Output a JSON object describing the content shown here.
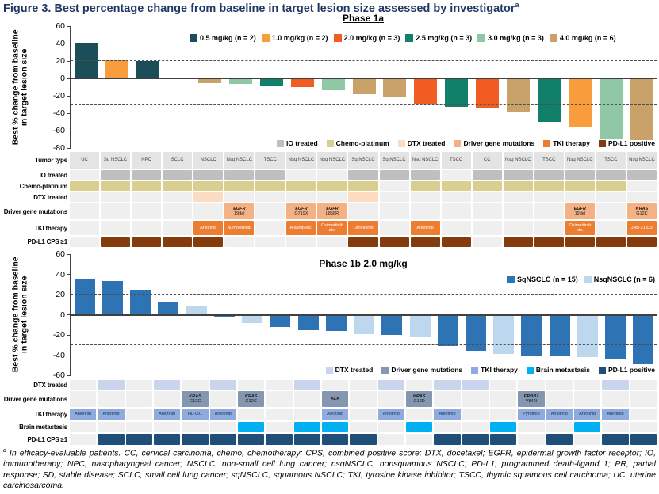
{
  "figure_title": "Figure 3. Best percentage change from baseline in target lesion size assessed by investigator",
  "figure_title_sup": "a",
  "footnote": {
    "marker": "a",
    "text": " In efficacy-evaluable patients. CC, cervical carcinoma; chemo, chemotherapy; CPS, combined positive score; DTX, docetaxel; EGFR, epidermal growth factor receptor; IO, immunotherapy; NPC, nasopharyngeal cancer; NSCLC, non-small cell lung cancer; nsqNSCLC, nonsquamous NSCLC; PD-L1, programmed death-ligand 1; PR, partial response; SD, stable disease; SCLC, small cell lung cancer; sqNSCLC, squamous NSCLC; TKI, tyrosine kinase inhibitor; TSCC, thymic squamous cell carcinoma; UC, uterine carcinosarcoma."
  },
  "colors": {
    "title_navy": "#1F3864",
    "axis_line": "#404040",
    "empty_cell": "#EFEFEF",
    "tumor_cell": "#E4E4E4",
    "io": "#BFBFBF",
    "chemo": "#D8CE8E",
    "dtx_1a": "#FBDCC3",
    "driver_1a": "#F4B183",
    "tki_1a": "#ED7D31",
    "pdl1_1a": "#843C0C",
    "sq_blue": "#2E74B5",
    "nsq_blue": "#BDD7EE",
    "dtx_1b": "#CAD4EC",
    "driver_1b": "#8496B0",
    "tki_1b": "#8FAADC",
    "brain": "#00B0F0",
    "pdl1_1b": "#1F4E79"
  },
  "chart_data": [
    {
      "type": "bar",
      "title": "Phase 1a",
      "ylabel": "Best % change from baseline in target lesion size",
      "ylim": [
        -80,
        60
      ],
      "yticks": [
        60,
        40,
        20,
        0,
        -20,
        -40,
        -60,
        -80
      ],
      "ref_lines": [
        20,
        -30
      ],
      "grid": false,
      "legend_position": "top-center",
      "legend": [
        {
          "key": "0.5",
          "label": "0.5 mg/kg (n = 2)",
          "color": "#1C4E5A"
        },
        {
          "key": "1.0",
          "label": "1.0 mg/kg (n = 2)",
          "color": "#F89C3C"
        },
        {
          "key": "2.0",
          "label": "2.0 mg/kg (n = 3)",
          "color": "#F15C22"
        },
        {
          "key": "2.5",
          "label": "2.5 mg/kg (n = 3)",
          "color": "#11806B"
        },
        {
          "key": "3.0",
          "label": "3.0 mg/kg (n = 3)",
          "color": "#90C7A5"
        },
        {
          "key": "4.0",
          "label": "4.0 mg/kg (n = 6)",
          "color": "#C8A269"
        }
      ],
      "bars": [
        {
          "value": 41,
          "key": "0.5"
        },
        {
          "value": 21,
          "key": "1.0"
        },
        {
          "value": 20,
          "key": "0.5"
        },
        {
          "value": 0,
          "key": "4.0"
        },
        {
          "value": -5,
          "key": "4.0"
        },
        {
          "value": -6,
          "key": "3.0"
        },
        {
          "value": -8,
          "key": "2.5"
        },
        {
          "value": -10,
          "key": "2.0"
        },
        {
          "value": -14,
          "key": "3.0"
        },
        {
          "value": -18,
          "key": "4.0"
        },
        {
          "value": -21,
          "key": "4.0"
        },
        {
          "value": -29,
          "key": "2.0"
        },
        {
          "value": -33,
          "key": "2.5"
        },
        {
          "value": -34,
          "key": "2.0"
        },
        {
          "value": -38,
          "key": "4.0"
        },
        {
          "value": -50,
          "key": "2.5"
        },
        {
          "value": -55,
          "key": "1.0"
        },
        {
          "value": -69,
          "key": "3.0"
        },
        {
          "value": -71,
          "key": "4.0"
        }
      ]
    },
    {
      "type": "bar",
      "title": "Phase 1b 2.0 mg/kg",
      "ylabel": "Best % change from baseline in target lesion size",
      "ylim": [
        -60,
        60
      ],
      "yticks": [
        60,
        40,
        20,
        0,
        -20,
        -40,
        -60
      ],
      "ref_lines": [
        20,
        -30
      ],
      "grid": false,
      "legend_position": "top-right",
      "legend": [
        {
          "key": "sq",
          "label": "SqNSCLC (n = 15)",
          "color": "#2E74B5"
        },
        {
          "key": "nsq",
          "label": "NsqNSCLC (n = 6)",
          "color": "#BDD7EE"
        }
      ],
      "bars": [
        {
          "value": 35,
          "key": "sq"
        },
        {
          "value": 33,
          "key": "sq"
        },
        {
          "value": 25,
          "key": "sq"
        },
        {
          "value": 12,
          "key": "sq"
        },
        {
          "value": 8,
          "key": "nsq"
        },
        {
          "value": -3,
          "key": "sq"
        },
        {
          "value": -8,
          "key": "nsq"
        },
        {
          "value": -12,
          "key": "sq"
        },
        {
          "value": -15,
          "key": "sq"
        },
        {
          "value": -16,
          "key": "sq"
        },
        {
          "value": -19,
          "key": "nsq"
        },
        {
          "value": -20,
          "key": "sq"
        },
        {
          "value": -22,
          "key": "nsq"
        },
        {
          "value": -31,
          "key": "sq"
        },
        {
          "value": -36,
          "key": "sq"
        },
        {
          "value": -39,
          "key": "nsq"
        },
        {
          "value": -41,
          "key": "sq"
        },
        {
          "value": -41,
          "key": "sq"
        },
        {
          "value": -42,
          "key": "nsq"
        },
        {
          "value": -44,
          "key": "sq"
        },
        {
          "value": -49,
          "key": "sq"
        }
      ]
    }
  ],
  "grid1a": {
    "row_labels": [
      "Tumor type",
      "IO treated",
      "Chemo-platinum",
      "DTX treated",
      "Driver gene mutations",
      "TKI therapy",
      "PD-L1 CPS ≥1"
    ],
    "legend": [
      {
        "label": "IO treated",
        "color": "#BFBFBF"
      },
      {
        "label": "Chemo-platinum",
        "color": "#D8CE8E"
      },
      {
        "label": "DTX treated",
        "color": "#FBDCC3"
      },
      {
        "label": "Driver gene mutations",
        "color": "#F4B183"
      },
      {
        "label": "TKI therapy",
        "color": "#ED7D31"
      },
      {
        "label": "PD-L1 positive",
        "color": "#843C0C"
      }
    ],
    "columns": [
      {
        "tumor": "UC",
        "chemo": true
      },
      {
        "tumor": "Sq NSCLC",
        "io": true,
        "chemo": true,
        "pdl1": true
      },
      {
        "tumor": "NPC",
        "io": true,
        "chemo": true,
        "pdl1": true
      },
      {
        "tumor": "SCLC",
        "io": true,
        "chemo": true,
        "pdl1": true
      },
      {
        "tumor": "NSCLC",
        "io": true,
        "chemo": true,
        "dtx": true,
        "tki": "Anlotinib",
        "pdl1": true
      },
      {
        "tumor": "Nsq NSCLC",
        "io": true,
        "chemo": true,
        "driver": {
          "gene": "EGFR",
          "mut": "19del"
        },
        "tki": "Aumolertinib"
      },
      {
        "tumor": "TSCC",
        "io": true,
        "chemo": true
      },
      {
        "tumor": "Nsq NSCLC",
        "chemo": true,
        "driver": {
          "gene": "EGFR",
          "mut": "G719X"
        },
        "tki": "Afatinib etc."
      },
      {
        "tumor": "Nsq NSCLC",
        "chemo": true,
        "driver": {
          "gene": "EGFR",
          "mut": "L858R"
        },
        "tki": "Osimertinib etc."
      },
      {
        "tumor": "Sq NSCLC",
        "io": true,
        "chemo": true,
        "dtx": true,
        "tki": "Lenvatinib",
        "pdl1": true
      },
      {
        "tumor": "Sq NSCLC",
        "io": true,
        "pdl1": true
      },
      {
        "tumor": "Nsq NSCLC",
        "io": true,
        "chemo": true,
        "tki": "Anlotinib",
        "pdl1": true
      },
      {
        "tumor": "TSCC",
        "chemo": true,
        "pdl1": true
      },
      {
        "tumor": "CC",
        "io": true,
        "chemo": true
      },
      {
        "tumor": "Nsq NSCLC",
        "io": true,
        "chemo": true,
        "pdl1": true
      },
      {
        "tumor": "TSCC",
        "io": true,
        "chemo": true,
        "pdl1": true
      },
      {
        "tumor": "Nsq NSCLC",
        "io": true,
        "chemo": true,
        "driver": {
          "gene": "EGFR",
          "mut": "19del"
        },
        "tki": "Osimertinib etc.",
        "pdl1": true
      },
      {
        "tumor": "TSCC",
        "io": true,
        "chemo": true,
        "pdl1": true
      },
      {
        "tumor": "Nsq NSCLC",
        "io": true,
        "driver": {
          "gene": "KRAS",
          "mut": "G12C"
        },
        "tki": "JAB-21822",
        "pdl1": true
      }
    ]
  },
  "grid1b": {
    "row_labels": [
      "DTX treated",
      "Driver gene mutations",
      "TKI therapy",
      "Brain metastasis",
      "PD-L1 CPS ≥1"
    ],
    "legend": [
      {
        "label": "DTX treated",
        "color": "#CAD4EC"
      },
      {
        "label": "Driver gene mutations",
        "color": "#8496B0"
      },
      {
        "label": "TKI therapy",
        "color": "#8FAADC"
      },
      {
        "label": "Brain metastasis",
        "color": "#00B0F0"
      },
      {
        "label": "PD-L1 positive",
        "color": "#1F4E79"
      }
    ],
    "columns": [
      {
        "tki": "Anlotinib"
      },
      {
        "dtx": true,
        "tki": "Anlotinib",
        "pdl1": true
      },
      {
        "pdl1": true
      },
      {
        "dtx": true,
        "tki": "Anlotinib",
        "pdl1": true
      },
      {
        "driver": {
          "gene": "KRAS",
          "mut": "G12C"
        },
        "tki": "HL-091",
        "pdl1": true
      },
      {
        "dtx": true,
        "tki": "Anlotinib",
        "pdl1": true
      },
      {
        "driver": {
          "gene": "KRAS",
          "mut": "G12C"
        },
        "brain": true,
        "pdl1": true
      },
      {
        "pdl1": true
      },
      {
        "dtx": true,
        "brain": true,
        "pdl1": true
      },
      {
        "driver": {
          "gene": "ALK",
          "mut": ""
        },
        "tki": "Alectinib",
        "brain": true,
        "pdl1": true
      },
      {
        "pdl1": true
      },
      {
        "dtx": true,
        "tki": "Anlotinib"
      },
      {
        "driver": {
          "gene": "KRAS",
          "mut": "G12D"
        },
        "brain": true
      },
      {
        "dtx": true,
        "tki": "Anlotinib",
        "pdl1": true
      },
      {
        "dtx": true,
        "pdl1": true
      },
      {
        "brain": true,
        "pdl1": true
      },
      {
        "driver": {
          "gene": "ERBB2",
          "mut": "V842I"
        },
        "tki": "Pyrotinib"
      },
      {
        "tki": "Anlotinib",
        "pdl1": true
      },
      {
        "tki": "Anlotinib",
        "brain": true
      },
      {
        "dtx": true,
        "tki": "Anlotinib",
        "pdl1": true
      },
      {
        "pdl1": true
      }
    ]
  }
}
